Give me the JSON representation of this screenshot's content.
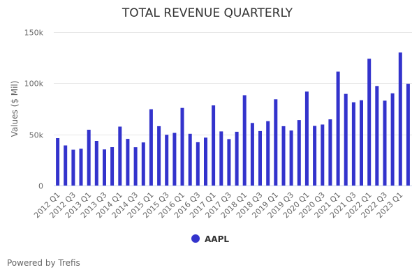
{
  "chart_data": {
    "type": "bar",
    "title": "TOTAL REVENUE QUARTERLY",
    "xlabel": "",
    "ylabel": "Values ($ Mil)",
    "ylim": [
      0,
      150000
    ],
    "yticks": [
      0,
      50000,
      100000,
      150000
    ],
    "ytick_labels": [
      "0",
      "50k",
      "100k",
      "150k"
    ],
    "grid": true,
    "legend_position": "bottom-center",
    "categories": [
      "2012 Q1",
      "2012 Q2",
      "2012 Q3",
      "2012 Q4",
      "2013 Q1",
      "2013 Q2",
      "2013 Q3",
      "2013 Q4",
      "2014 Q1",
      "2014 Q2",
      "2014 Q3",
      "2014 Q4",
      "2015 Q1",
      "2015 Q2",
      "2015 Q3",
      "2015 Q4",
      "2016 Q1",
      "2016 Q2",
      "2016 Q3",
      "2016 Q4",
      "2017 Q1",
      "2017 Q2",
      "2017 Q3",
      "2017 Q4",
      "2018 Q1",
      "2018 Q2",
      "2018 Q3",
      "2018 Q4",
      "2019 Q1",
      "2019 Q2",
      "2019 Q3",
      "2019 Q4",
      "2020 Q1",
      "2020 Q2",
      "2020 Q3",
      "2020 Q4",
      "2021 Q1",
      "2021 Q2",
      "2021 Q3",
      "2021 Q4",
      "2022 Q1",
      "2022 Q2",
      "2022 Q3",
      "2022 Q4",
      "2023 Q1",
      "2023 Q2"
    ],
    "visible_xtick_labels": [
      "2012 Q1",
      "2012 Q3",
      "2013 Q1",
      "2013 Q3",
      "2014 Q1",
      "2014 Q3",
      "2015 Q1",
      "2015 Q3",
      "2016 Q1",
      "2016 Q3",
      "2017 Q1",
      "2017 Q3",
      "2018 Q1",
      "2018 Q3",
      "2019 Q1",
      "2019 Q3",
      "2020 Q1",
      "2020 Q3",
      "2021 Q1",
      "2021 Q3",
      "2022 Q1",
      "2022 Q3",
      "2023 Q1"
    ],
    "series": [
      {
        "name": "AAPL",
        "color": "#3333cc",
        "values": [
          46333,
          39186,
          35023,
          35966,
          54512,
          43603,
          35323,
          37472,
          57594,
          45646,
          37432,
          42123,
          74599,
          58010,
          49605,
          51501,
          75872,
          50557,
          42358,
          46852,
          78351,
          52896,
          45408,
          52579,
          88293,
          61137,
          53265,
          62900,
          84310,
          58015,
          53809,
          64040,
          91819,
          58313,
          59685,
          64698,
          111439,
          89584,
          81434,
          83360,
          123945,
          97278,
          82959,
          90146,
          130000,
          99500
        ]
      }
    ]
  },
  "legend": {
    "label": "AAPL",
    "color": "#3333cc"
  },
  "credits": {
    "text": "Powered by Trefis"
  }
}
